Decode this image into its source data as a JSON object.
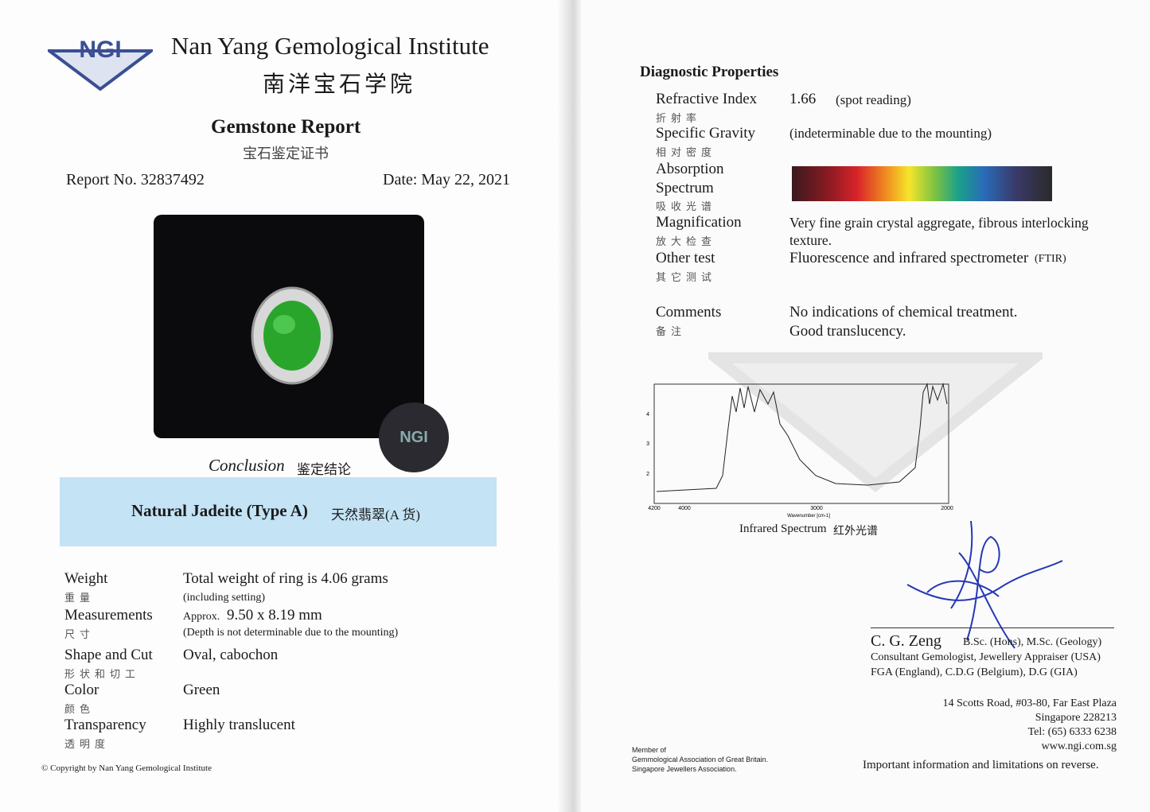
{
  "header": {
    "logo": "NGI",
    "institute": "Nan Yang Gemological Institute",
    "institute_cn": "南洋宝石学院",
    "title": "Gemstone Report",
    "title_cn": "宝石鉴定证书",
    "report_no": "Report No. 32837492",
    "date": "Date: May 22, 2021"
  },
  "seal": {
    "logo": "NGI"
  },
  "conclusion": {
    "label": "Conclusion",
    "label_cn": "鉴定结论",
    "result": "Natural Jadeite (Type A)",
    "result_cn": "天然翡翠(A 货)"
  },
  "properties": [
    {
      "label": "Weight",
      "label_cn": "重量",
      "value": "Total weight of ring is 4.06 grams",
      "note": "(including setting)"
    },
    {
      "label": "Measurements",
      "label_cn": "尺寸",
      "prefix": "Approx.",
      "value": "9.50 x 8.19 mm",
      "note": "(Depth is not determinable due to the mounting)"
    },
    {
      "label": "Shape and Cut",
      "label_cn": "形状和切工",
      "value": "Oval, cabochon"
    },
    {
      "label": "Color",
      "label_cn": "颜色",
      "value": "Green"
    },
    {
      "label": "Transparency",
      "label_cn": "透明度",
      "value": "Highly translucent"
    }
  ],
  "copyright": "© Copyright by Nan Yang Gemological Institute",
  "diagnostic": {
    "title": "Diagnostic Properties",
    "rows": [
      {
        "label": "Refractive Index",
        "label_cn": "折射率",
        "value": "1.66",
        "note": "(spot reading)"
      },
      {
        "label": "Specific Gravity",
        "label_cn": "相对密度",
        "value": "(indeterminable due to the mounting)"
      },
      {
        "label": "Absorption Spectrum",
        "label_cn": "吸收光谱"
      },
      {
        "label": "Magnification",
        "label_cn": "放大检查",
        "value": "Very fine grain crystal aggregate, fibrous interlocking texture."
      },
      {
        "label": "Other test",
        "label_cn": "其它测试",
        "value": "Fluorescence and infrared spectrometer",
        "note": "(FTIR)"
      },
      {
        "label": "Comments",
        "label_cn": "备注",
        "value": "No indications of chemical treatment.",
        "note": "Good translucency."
      }
    ]
  },
  "infrared": {
    "x_labels": [
      "4200",
      "4000",
      "3000",
      "2000"
    ],
    "x_title": "Wavenumber [cm-1]",
    "y_labels": [
      "4",
      "3",
      "2"
    ],
    "caption": "Infrared Spectrum",
    "caption_cn": "红外光谱"
  },
  "signatory": {
    "name": "C. G. Zeng",
    "degrees": "B.Sc. (Hons), M.Sc. (Geology)",
    "titles": [
      "Consultant Gemologist, Jewellery Appraiser (USA)",
      "FGA (England), C.D.G (Belgium), D.G (GIA)"
    ]
  },
  "address": [
    "14 Scotts Road, #03-80, Far East Plaza",
    "Singapore 228213",
    "Tel: (65) 6333 6238",
    "www.ngi.com.sg"
  ],
  "membership": [
    "Member of",
    "Gemmological Association of Great Britain.",
    "Singapore Jewellers Association."
  ],
  "notice": "Important information and limitations on reverse."
}
